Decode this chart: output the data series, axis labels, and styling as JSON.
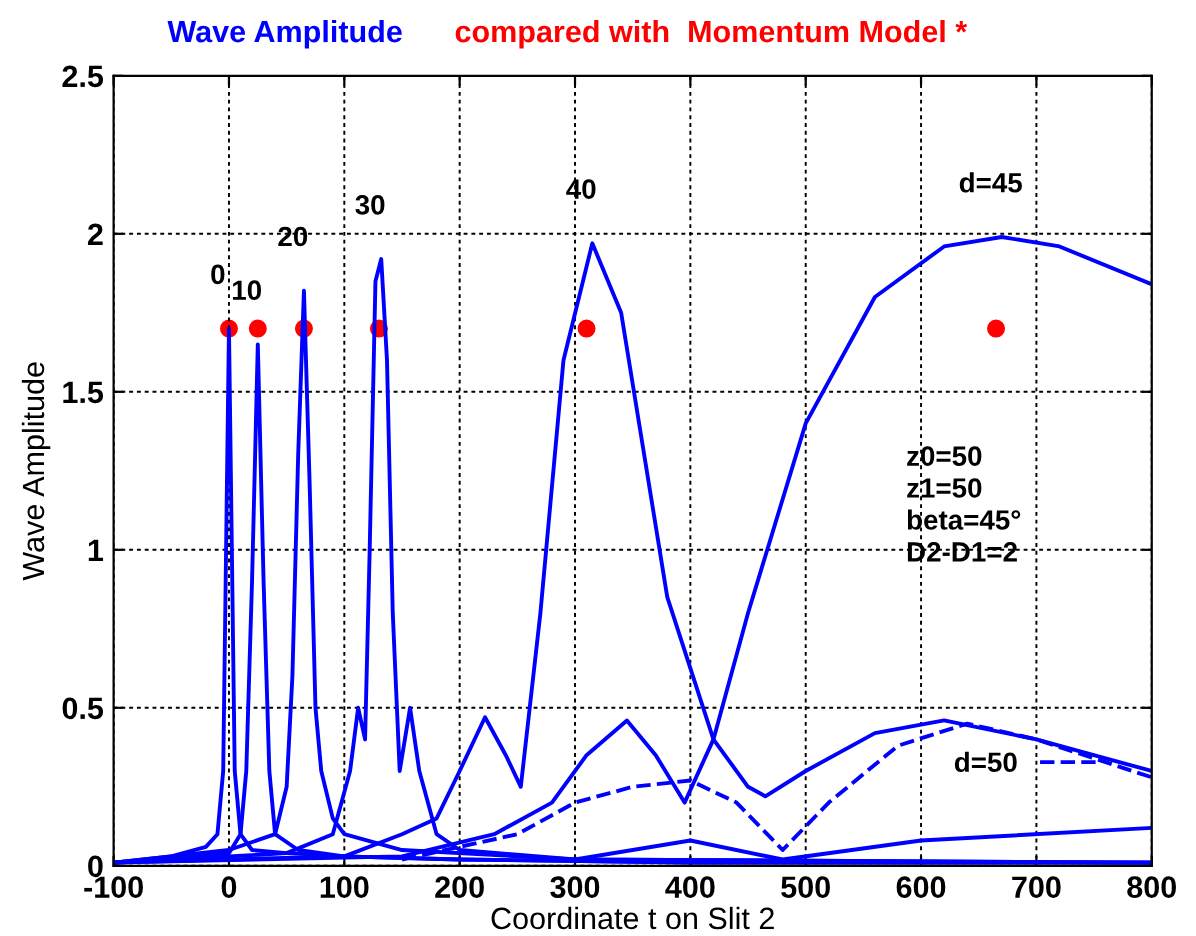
{
  "chart_data": {
    "type": "line",
    "title": "Wave Amplitude",
    "subtitle": "compared with  Momentum Model *",
    "xlabel": "Coordinate t on Slit 2",
    "ylabel": "Wave Amplitude",
    "xlim": [
      -100,
      800
    ],
    "xticks": [
      -100,
      0,
      100,
      200,
      300,
      400,
      500,
      600,
      700,
      800
    ],
    "ylim": [
      0,
      2.5
    ],
    "yticks": [
      0,
      0.5,
      1,
      1.5,
      2,
      2.5
    ],
    "grid": true,
    "legend": "bottom right",
    "marker": "none",
    "series": [
      {
        "color": "#0000ff",
        "line_style": "solid",
        "x": [
          -100,
          -50,
          -20,
          -10,
          -5,
          0,
          5,
          10,
          20,
          50,
          100,
          200,
          400,
          800
        ],
        "values": [
          0.01,
          0.03,
          0.06,
          0.1,
          0.3,
          1.7,
          0.3,
          0.1,
          0.05,
          0.04,
          0.03,
          0.02,
          0.01,
          0.01
        ]
      },
      {
        "color": "#0000ff",
        "line_style": "solid",
        "x": [
          -100,
          0,
          10,
          15,
          20,
          25,
          30,
          35,
          40,
          60,
          100,
          200,
          400,
          800
        ],
        "values": [
          0.01,
          0.04,
          0.1,
          0.3,
          0.9,
          1.65,
          0.9,
          0.3,
          0.1,
          0.05,
          0.03,
          0.02,
          0.01,
          0.01
        ]
      },
      {
        "color": "#0000ff",
        "line_style": "solid",
        "x": [
          -100,
          0,
          40,
          50,
          55,
          60,
          65,
          70,
          75,
          80,
          90,
          100,
          150,
          300,
          800
        ],
        "values": [
          0.01,
          0.05,
          0.1,
          0.25,
          0.6,
          1.3,
          1.82,
          1.2,
          0.5,
          0.3,
          0.15,
          0.1,
          0.05,
          0.02,
          0.01
        ]
      },
      {
        "color": "#0000ff",
        "line_style": "solid",
        "x": [
          -100,
          50,
          90,
          105,
          112,
          118,
          122,
          127,
          132,
          137,
          142,
          148,
          157,
          165,
          180,
          200,
          300,
          800
        ],
        "values": [
          0.01,
          0.04,
          0.1,
          0.3,
          0.5,
          0.4,
          1.0,
          1.85,
          1.92,
          1.6,
          0.8,
          0.3,
          0.5,
          0.3,
          0.1,
          0.05,
          0.02,
          0.01
        ]
      },
      {
        "color": "#0000ff",
        "line_style": "solid",
        "x": [
          -100,
          100,
          150,
          180,
          200,
          222,
          240,
          253,
          270,
          290,
          315,
          340,
          360,
          380,
          420,
          450,
          465,
          500,
          560,
          620,
          700,
          800
        ],
        "values": [
          0.01,
          0.03,
          0.1,
          0.15,
          0.3,
          0.47,
          0.35,
          0.25,
          0.8,
          1.6,
          1.97,
          1.75,
          1.3,
          0.85,
          0.4,
          0.25,
          0.22,
          0.3,
          0.42,
          0.46,
          0.4,
          0.3
        ]
      },
      {
        "color": "#0000ff",
        "line_style": "solid",
        "x": [
          -100,
          150,
          230,
          280,
          310,
          345,
          370,
          395,
          420,
          450,
          500,
          560,
          620,
          670,
          720,
          800
        ],
        "values": [
          0.01,
          0.03,
          0.1,
          0.2,
          0.35,
          0.46,
          0.35,
          0.2,
          0.4,
          0.8,
          1.4,
          1.8,
          1.96,
          1.99,
          1.96,
          1.84
        ]
      },
      {
        "color": "#0000ff",
        "line_style": "solid",
        "x": [
          300,
          400,
          480,
          600,
          800
        ],
        "values": [
          0.02,
          0.08,
          0.02,
          0.08,
          0.12
        ]
      },
      {
        "name": "d=50",
        "color": "#0000ff",
        "line_style": "dashed",
        "x": [
          150,
          250,
          300,
          350,
          400,
          440,
          480,
          520,
          580,
          640,
          700,
          800
        ],
        "values": [
          0.02,
          0.1,
          0.2,
          0.25,
          0.27,
          0.2,
          0.05,
          0.2,
          0.38,
          0.45,
          0.4,
          0.28
        ]
      },
      {
        "type": "scatter",
        "marker": "circle",
        "color": "#ff0000",
        "x": [
          0,
          25,
          65,
          130,
          310,
          665
        ],
        "values": [
          1.7,
          1.7,
          1.7,
          1.7,
          1.7,
          1.7
        ]
      }
    ],
    "annotations": [
      {
        "text": "0",
        "x": 0,
        "y": 1.7
      },
      {
        "text": "10",
        "x": 25,
        "y": 1.65
      },
      {
        "text": "20",
        "x": 65,
        "y": 1.82
      },
      {
        "text": "30",
        "x": 132,
        "y": 1.92
      },
      {
        "text": "40",
        "x": 315,
        "y": 1.97
      },
      {
        "text": "d=45",
        "x": 670,
        "y": 1.99
      },
      "z0=50\nz1=50\nbeta=45°\nD2-D1=2"
    ]
  }
}
